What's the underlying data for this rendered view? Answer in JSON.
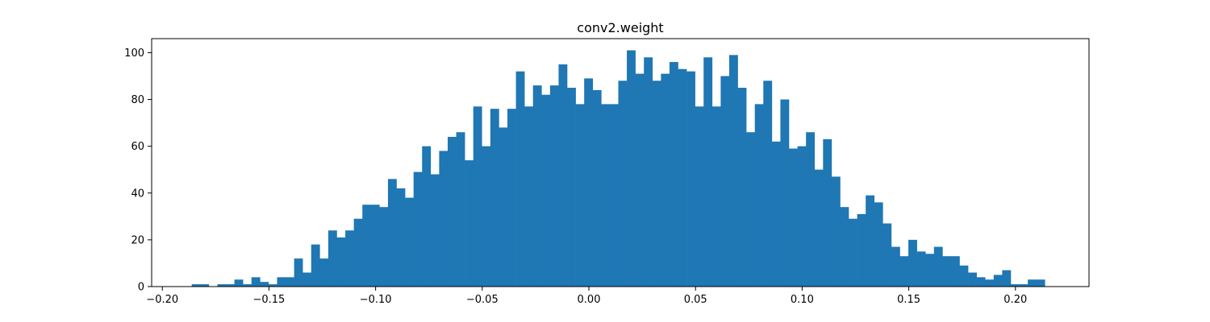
{
  "chart_data": {
    "type": "bar",
    "title": "conv2.weight",
    "xlabel": "",
    "ylabel": "",
    "bin_start": -0.1862,
    "bin_width": 0.004,
    "xlim": [
      -0.205,
      0.2345
    ],
    "ylim": [
      0,
      106
    ],
    "xticks": [
      -0.2,
      -0.15,
      -0.1,
      -0.05,
      0.0,
      0.05,
      0.1,
      0.15,
      0.2
    ],
    "xtick_labels": [
      "−0.20",
      "−0.15",
      "−0.10",
      "−0.05",
      "0.00",
      "0.05",
      "0.10",
      "0.15",
      "0.20"
    ],
    "yticks": [
      0,
      20,
      40,
      60,
      80,
      100
    ],
    "ytick_labels": [
      "0",
      "20",
      "40",
      "60",
      "80",
      "100"
    ],
    "grid": false,
    "bar_color": "#1f77b4",
    "counts": [
      1,
      1,
      0,
      1,
      1,
      3,
      1,
      4,
      2,
      1,
      4,
      4,
      12,
      6,
      18,
      12,
      24,
      21,
      24,
      29,
      35,
      35,
      34,
      46,
      42,
      38,
      49,
      60,
      48,
      58,
      64,
      66,
      54,
      77,
      60,
      76,
      68,
      76,
      92,
      77,
      86,
      82,
      86,
      95,
      85,
      78,
      89,
      84,
      78,
      78,
      88,
      101,
      91,
      98,
      88,
      91,
      96,
      93,
      92,
      77,
      98,
      77,
      90,
      99,
      85,
      66,
      78,
      88,
      62,
      80,
      59,
      60,
      66,
      50,
      63,
      47,
      34,
      29,
      31,
      39,
      36,
      27,
      17,
      13,
      20,
      15,
      14,
      17,
      13,
      13,
      9,
      6,
      4,
      3,
      5,
      7,
      1,
      1,
      3,
      3
    ]
  }
}
